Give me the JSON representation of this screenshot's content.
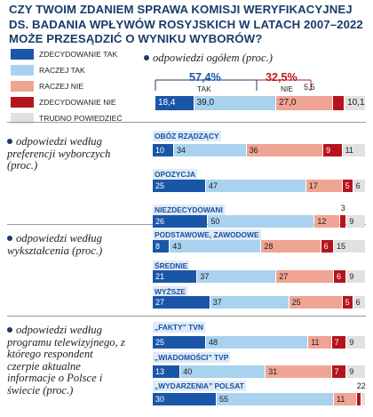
{
  "title": "CZY TWOIM  ZDANIEM SPRAWA KOMISJI WERYFIKACYJNEJ DS. BADANIA WPŁYWÓW ROSYJSKICH W LATACH 2007–2022 MOŻE PRZESĄDZIĆ O WYNIKU WYBORÓW?",
  "colors": {
    "zdecydowanie_tak": "#1a56a8",
    "raczej_tak": "#a9d2ee",
    "raczej_nie": "#f0a493",
    "zdecydowanie_nie": "#b5141e",
    "trudno": "#e1e1e1",
    "accent_blue": "#1a3a6b",
    "accent_red": "#c0141c"
  },
  "legend": [
    {
      "label": "ZDECYDOWANIE TAK",
      "color": "#1a56a8"
    },
    {
      "label": "RACZEJ TAK",
      "color": "#a9d2ee"
    },
    {
      "label": "RACZEJ NIE",
      "color": "#f0a493"
    },
    {
      "label": "ZDECYDOWANIE NIE",
      "color": "#b5141e"
    },
    {
      "label": "TRUDNO POWIEDZIEĆ",
      "color": "#e1e1e1"
    }
  ],
  "overall": {
    "label": "odpowiedzi ogółem (proc.)",
    "tak_total": "57,4%",
    "tak_label": "TAK",
    "nie_total": "32,5%",
    "nie_label": "NIE",
    "values": [
      18.4,
      39.0,
      27.0,
      5.5,
      10.1
    ],
    "labels": [
      "18,4",
      "39,0",
      "27,0",
      "5,5",
      "10,1"
    ]
  },
  "sections": [
    {
      "label": "odpowiedzi według preferencji wyborczych (proc.)",
      "groups": [
        {
          "name": "OBÓZ RZĄDZĄCY",
          "values": [
            10,
            34,
            36,
            9,
            11
          ]
        },
        {
          "name": "OPOZYCJA",
          "values": [
            25,
            47,
            17,
            5,
            6
          ]
        },
        {
          "name": "NIEZDECYDOWANI",
          "values": [
            26,
            50,
            12,
            3,
            9
          ]
        }
      ]
    },
    {
      "label": "odpowiedzi według wykształcenia (proc.)",
      "groups": [
        {
          "name": "PODSTAWOWE, ZAWODOWE",
          "values": [
            8,
            43,
            28,
            6,
            15
          ]
        },
        {
          "name": "ŚREDNIE",
          "values": [
            21,
            37,
            27,
            6,
            9
          ]
        },
        {
          "name": "WYŻSZE",
          "values": [
            27,
            37,
            25,
            5,
            6
          ]
        }
      ]
    },
    {
      "label": "odpowiedzi według programu telewizyjnego, z którego respondent czerpie aktualne informacje o Polsce i świecie (proc.)",
      "groups": [
        {
          "name": "„FAKTY” TVN",
          "values": [
            25,
            48,
            11,
            7,
            9
          ]
        },
        {
          "name": "„WIADOMOŚCI” TVP",
          "values": [
            13,
            40,
            31,
            7,
            9
          ]
        },
        {
          "name": "„WYDARZENIA” POLSAT",
          "values": [
            30,
            55,
            11,
            2,
            2
          ]
        }
      ]
    }
  ],
  "chart_data": {
    "type": "bar",
    "title": "CZY TWOIM  ZDANIEM SPRAWA KOMISJI WERYFIKACYJNEJ DS. BADANIA WPŁYWÓW ROSYJSKICH W LATACH 2007–2022 MOŻE PRZESĄDZIĆ O WYNIKU WYBORÓW?",
    "stacked": true,
    "orientation": "horizontal",
    "categories": [
      "odpowiedzi ogółem",
      "OBÓZ RZĄDZĄCY",
      "OPOZYCJA",
      "NIEZDECYDOWANI",
      "PODSTAWOWE, ZAWODOWE",
      "ŚREDNIE",
      "WYŻSZE",
      "„FAKTY” TVN",
      "„WIADOMOŚCI” TVP",
      "„WYDARZENIA” POLSAT"
    ],
    "series": [
      {
        "name": "ZDECYDOWANIE TAK",
        "values": [
          18.4,
          10,
          25,
          26,
          8,
          21,
          27,
          25,
          13,
          30
        ]
      },
      {
        "name": "RACZEJ TAK",
        "values": [
          39.0,
          34,
          47,
          50,
          43,
          37,
          37,
          48,
          40,
          55
        ]
      },
      {
        "name": "RACZEJ NIE",
        "values": [
          27.0,
          36,
          17,
          12,
          28,
          27,
          25,
          11,
          31,
          11
        ]
      },
      {
        "name": "ZDECYDOWANIE NIE",
        "values": [
          5.5,
          9,
          5,
          3,
          6,
          6,
          5,
          7,
          7,
          2
        ]
      },
      {
        "name": "TRUDNO POWIEDZIEĆ",
        "values": [
          10.1,
          11,
          6,
          9,
          15,
          9,
          6,
          9,
          9,
          2
        ]
      }
    ],
    "xlim": [
      0,
      100
    ],
    "legend": "left"
  }
}
